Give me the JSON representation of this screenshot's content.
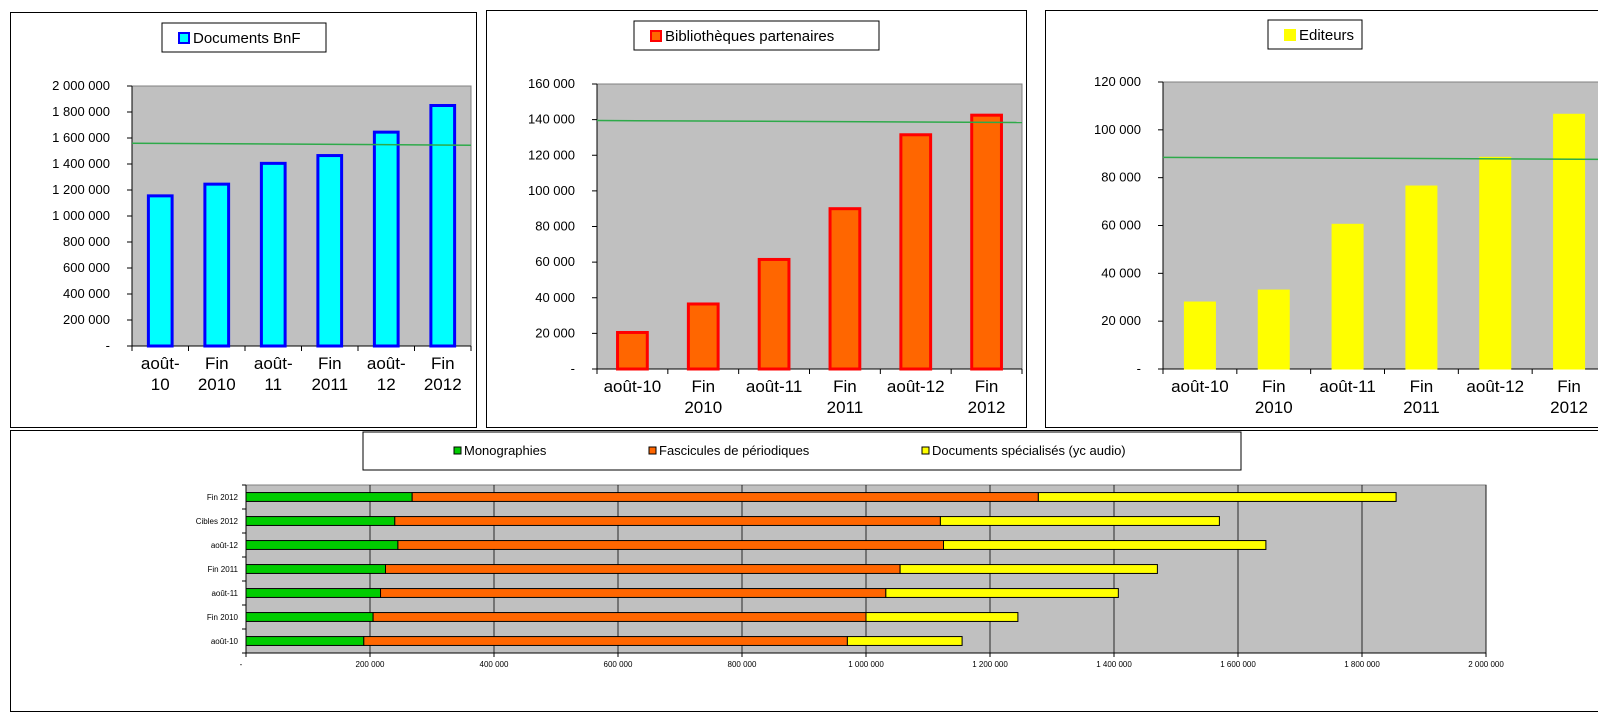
{
  "chart_data": [
    {
      "type": "bar",
      "legend": "Documents BnF",
      "categories": [
        [
          "août-",
          "10"
        ],
        [
          "Fin",
          "2010"
        ],
        [
          "août-",
          "11"
        ],
        [
          "Fin",
          "2011"
        ],
        [
          "août-",
          "12"
        ],
        [
          "Fin",
          "2012"
        ]
      ],
      "values": [
        1155000,
        1245000,
        1405000,
        1465000,
        1645000,
        1850000
      ],
      "target": 1560000,
      "ylim": [
        0,
        2000000
      ],
      "yticks": [
        "-",
        "200 000",
        "400 000",
        "600 000",
        "800 000",
        "1 000 000",
        "1 200 000",
        "1 400 000",
        "1 600 000",
        "1 800 000",
        "2 000 000"
      ],
      "bar_color": "#00ffff",
      "bar_edge": "#0000ff",
      "plot_bg": "#c0c0c0",
      "target_color": "#2eaa4a"
    },
    {
      "type": "bar",
      "legend": "Bibliothèques partenaires",
      "categories": [
        [
          "août-10"
        ],
        [
          "Fin",
          "2010"
        ],
        [
          "août-11"
        ],
        [
          "Fin",
          "2011"
        ],
        [
          "août-12"
        ],
        [
          "Fin",
          "2012"
        ]
      ],
      "values": [
        20500,
        36500,
        61500,
        90000,
        131500,
        142500
      ],
      "target": 139500,
      "ylim": [
        0,
        160000
      ],
      "yticks": [
        "-",
        "20 000",
        "40 000",
        "60 000",
        "80 000",
        "100 000",
        "120 000",
        "140 000",
        "160 000"
      ],
      "bar_color": "#ff6600",
      "bar_edge": "#ff0000",
      "plot_bg": "#c0c0c0",
      "target_color": "#2eaa4a"
    },
    {
      "type": "bar",
      "legend": "Editeurs",
      "categories": [
        [
          "août-10"
        ],
        [
          "Fin",
          "2010"
        ],
        [
          "août-11"
        ],
        [
          "Fin",
          "2011"
        ],
        [
          "août-12"
        ],
        [
          "Fin",
          "2012"
        ]
      ],
      "values": [
        28000,
        33000,
        60500,
        76500,
        88500,
        106500
      ],
      "target": 88500,
      "ylim": [
        0,
        120000
      ],
      "yticks": [
        "-",
        "20 000",
        "40 000",
        "60 000",
        "80 000",
        "100 000",
        "120 000"
      ],
      "bar_color": "#ffff00",
      "bar_edge": "#ffff00",
      "plot_bg": "#c0c0c0",
      "target_color": "#2eaa4a"
    },
    {
      "type": "bar",
      "orientation": "horizontal",
      "stacked": true,
      "categories": [
        "août-10",
        "Fin 2010",
        "août-11",
        "Fin 2011",
        "août-12",
        "Cibles 2012",
        "Fin 2012"
      ],
      "series": [
        {
          "name": "Monographies",
          "color": "#00cc00",
          "values": [
            190000,
            205000,
            217000,
            225000,
            245000,
            240000,
            268000
          ]
        },
        {
          "name": "Fascicules de périodiques",
          "color": "#ff6600",
          "values": [
            780000,
            795000,
            815000,
            830000,
            880000,
            880000,
            1010000
          ]
        },
        {
          "name": "Documents spécialisés (yc audio)",
          "color": "#ffff00",
          "values": [
            185000,
            245000,
            375000,
            415000,
            520000,
            450000,
            577000
          ]
        }
      ],
      "xlim": [
        0,
        2000000
      ],
      "xticks": [
        "-",
        "200 000",
        "400 000",
        "600 000",
        "800 000",
        "1 000 000",
        "1 200 000",
        "1 400 000",
        "1 600 000",
        "1 800 000",
        "2 000 000"
      ],
      "plot_bg": "#c0c0c0"
    }
  ]
}
